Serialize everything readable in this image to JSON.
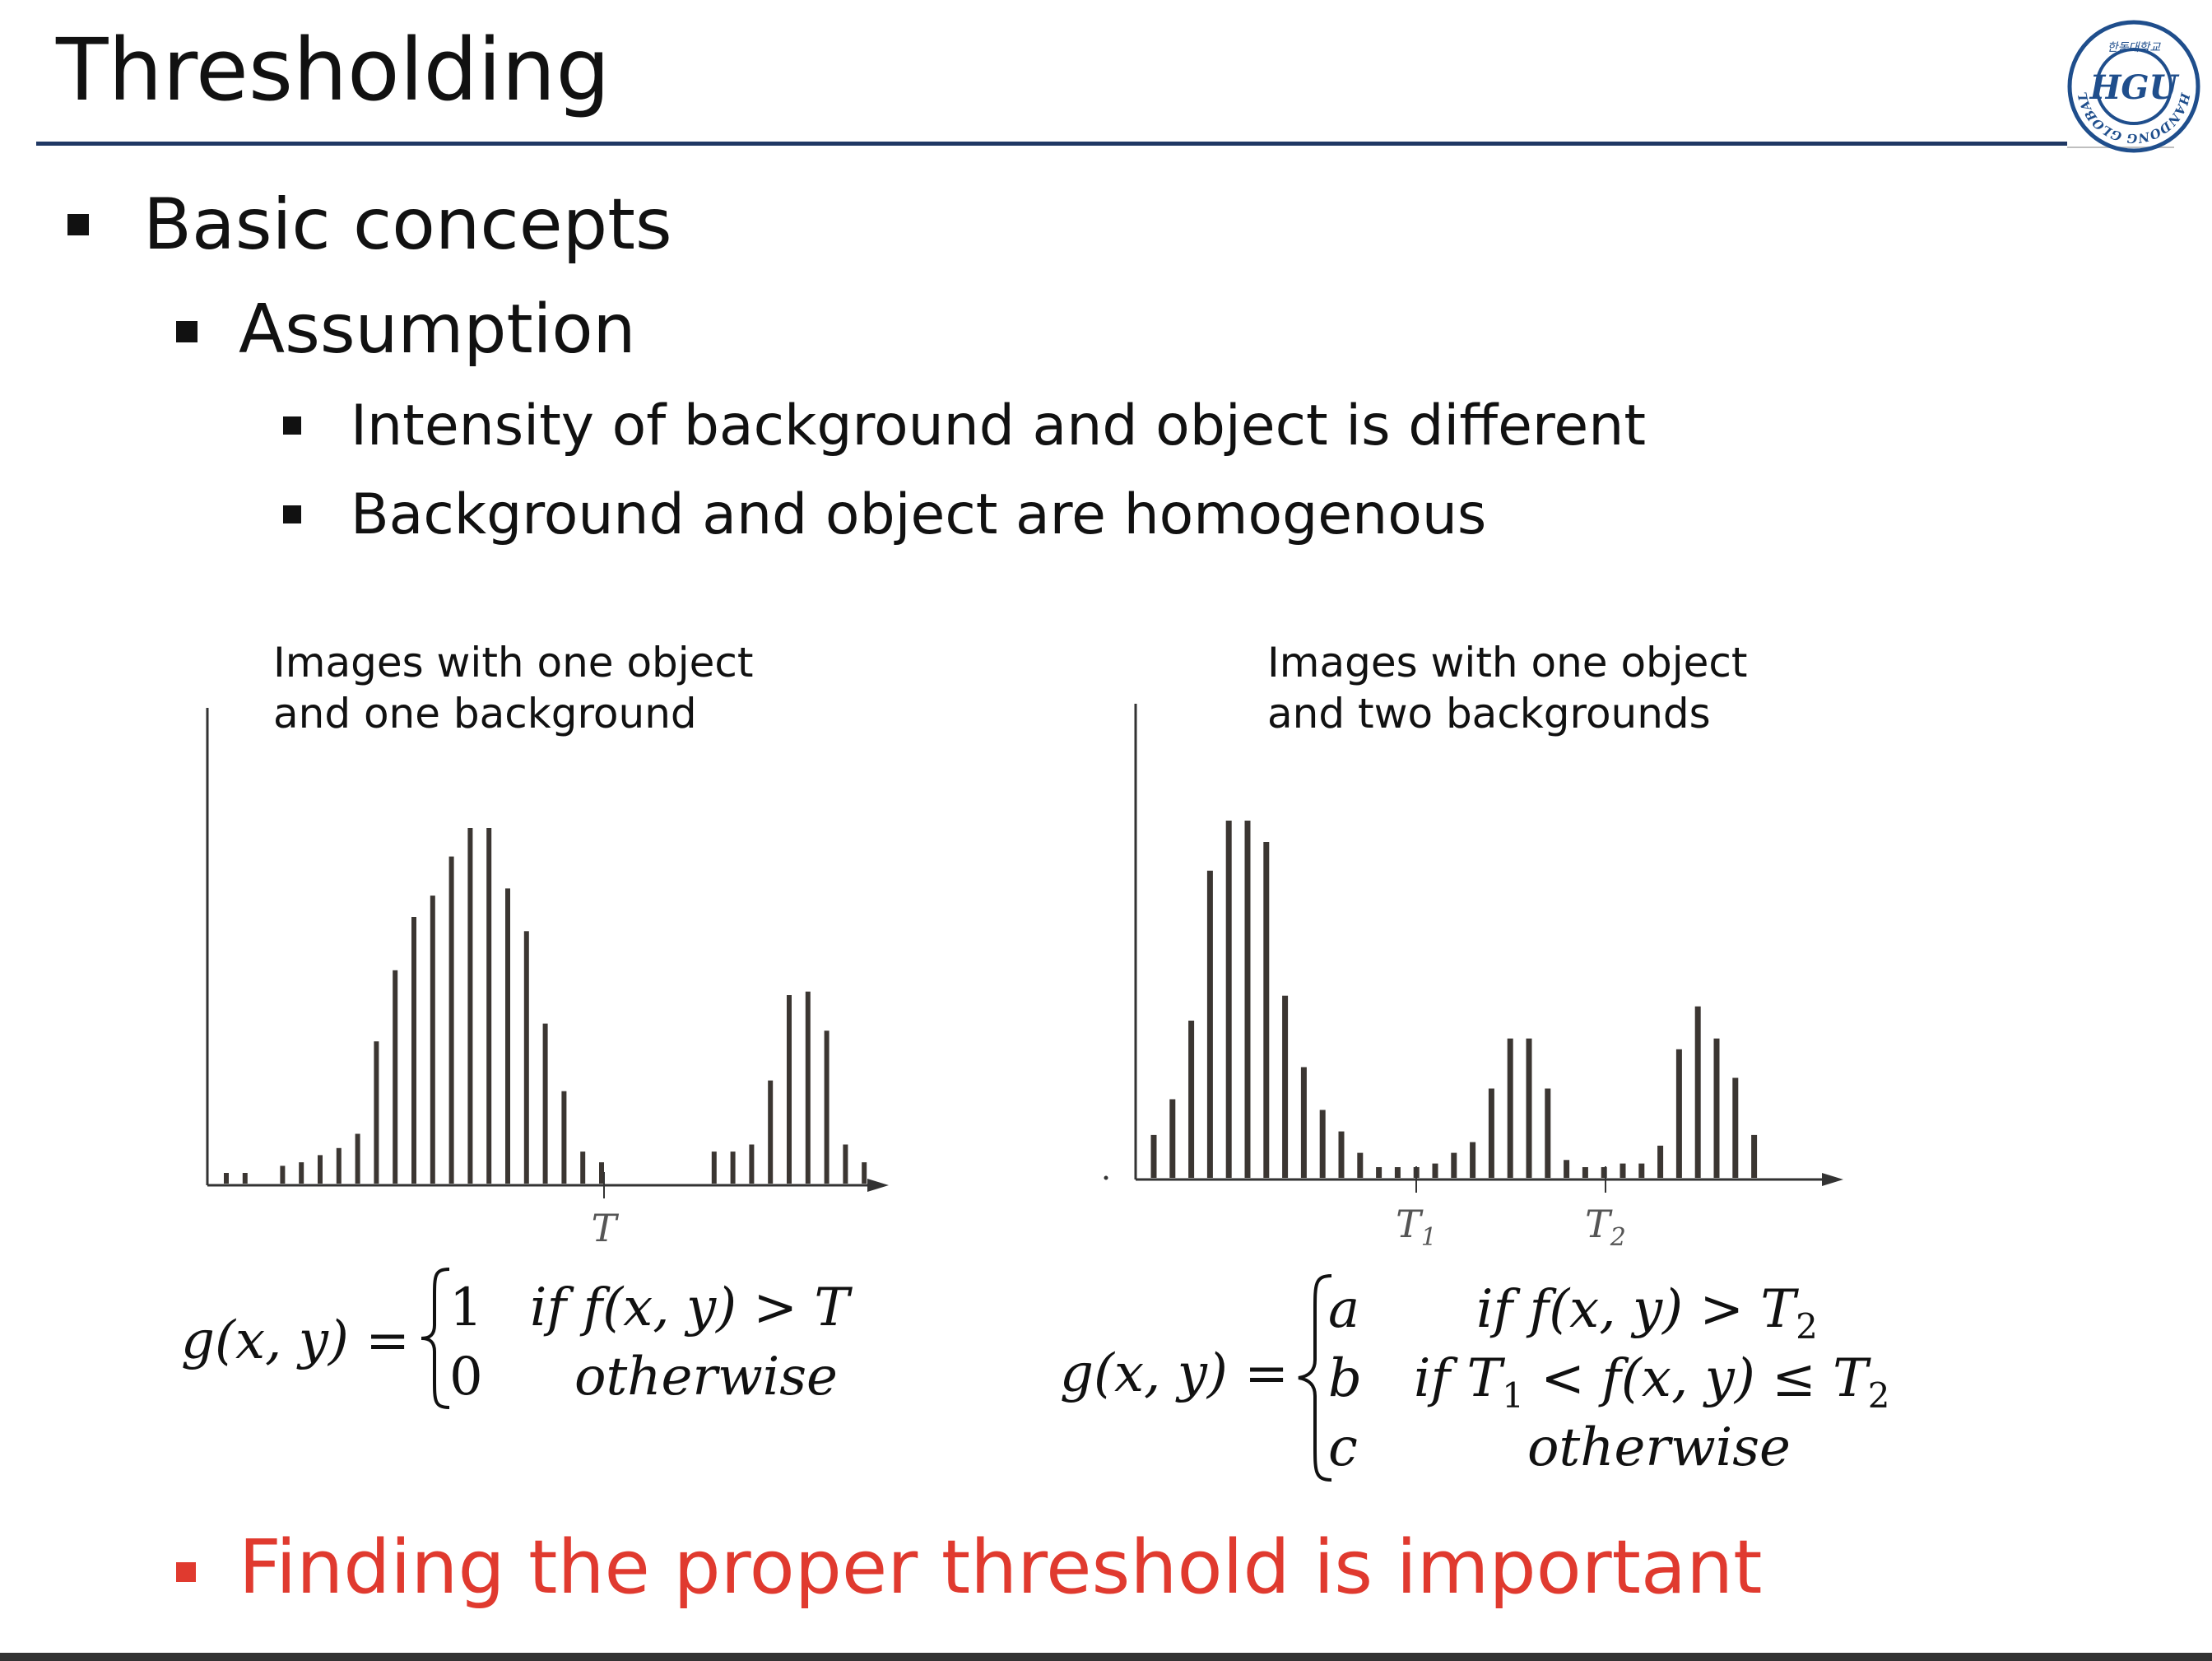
{
  "slide": {
    "title": "Thresholding",
    "logo_text": "HGU",
    "logo_ring_text": "HANDONG GLOBAL UNIVERSITY",
    "logo_korean": "한동대학교"
  },
  "bullets": {
    "l1": "Basic concepts",
    "l2": "Assumption",
    "l3a": "Intensity of background and object is different",
    "l3b": "Background and object are homogenous",
    "conclusion": "Finding the proper threshold is important"
  },
  "figures": {
    "left": {
      "caption_line1": "Images with one object",
      "caption_line2": "and one background",
      "tick_label": "T"
    },
    "right": {
      "caption_line1": "Images with one object",
      "caption_line2": "and two backgrounds",
      "tick1_label": "T",
      "tick1_sub": "1",
      "tick2_label": "T",
      "tick2_sub": "2"
    }
  },
  "formulas": {
    "left": {
      "lhs": "g(x, y) =",
      "row1_val": "1",
      "row1_cond": "if f(x, y) > T",
      "row2_val": "0",
      "row2_cond": "otherwise"
    },
    "right": {
      "lhs": "g(x, y) =",
      "row1_val": "a",
      "row1_cond_pre": "if f(x, y) > T",
      "row1_cond_sub": "2",
      "row2_val": "b",
      "row2_cond_pre": "if T",
      "row2_cond_sub1": "1",
      "row2_cond_mid": " < f(x, y) ≤ T",
      "row2_cond_sub2": "2",
      "row3_val": "c",
      "row3_cond": "otherwise"
    }
  },
  "colors": {
    "title_rule": "#1f3864",
    "conclusion": "#e03a2f",
    "bars": "#3b3632",
    "logo": "#1f4e8c"
  },
  "chart_data": [
    {
      "type": "bar",
      "title": "",
      "xlabel": "",
      "ylabel": "",
      "ylim": [
        0,
        100
      ],
      "threshold_labels": [
        "T"
      ],
      "values": [
        3,
        3,
        0,
        5,
        6,
        8,
        10,
        14,
        40,
        60,
        75,
        81,
        92,
        100,
        100,
        83,
        71,
        45,
        26,
        9,
        6,
        0,
        0,
        0,
        0,
        0,
        9,
        9,
        11,
        29,
        53,
        54,
        43,
        11,
        6
      ]
    },
    {
      "type": "bar",
      "title": "",
      "xlabel": "",
      "ylabel": "",
      "ylim": [
        0,
        100
      ],
      "threshold_labels": [
        "T1",
        "T2"
      ],
      "values": [
        12,
        22,
        44,
        86,
        100,
        100,
        94,
        51,
        31,
        19,
        13,
        7,
        3,
        3,
        3,
        4,
        7,
        10,
        25,
        39,
        39,
        25,
        5,
        3,
        3,
        4,
        4,
        9,
        36,
        48,
        39,
        28,
        12
      ]
    }
  ]
}
